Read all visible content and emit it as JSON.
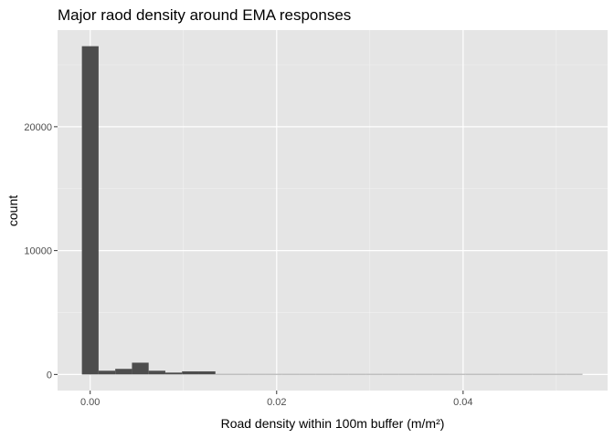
{
  "chart_data": {
    "type": "bar",
    "title": "Major raod density around EMA responses",
    "xlabel": "Road density within 100m buffer (m/m²)",
    "ylabel": "count",
    "xlim": [
      -0.0035,
      0.0555
    ],
    "ylim": [
      -1300,
      27800
    ],
    "x_ticks": [
      0.0,
      0.02,
      0.04
    ],
    "x_tick_labels": [
      "0.00",
      "0.02",
      "0.04"
    ],
    "y_ticks": [
      0,
      10000,
      20000
    ],
    "y_tick_labels": [
      "0",
      "10000",
      "20000"
    ],
    "grid": true,
    "panel_background": "#e5e5e5",
    "bar_color": "#4d4d4d",
    "bin_width": 0.00179,
    "bins_start": [
      -0.00089,
      0.0009,
      0.00269,
      0.00448,
      0.00627,
      0.00806,
      0.00985,
      0.01164,
      0.01343,
      0.01522,
      0.01701,
      0.0188,
      0.02059,
      0.02238,
      0.02417,
      0.02596,
      0.02775,
      0.02954,
      0.03133,
      0.03312,
      0.03491,
      0.0367,
      0.03849,
      0.04028,
      0.04207,
      0.04386,
      0.04565,
      0.04744,
      0.04923,
      0.05102
    ],
    "counts": [
      26500,
      300,
      450,
      950,
      300,
      150,
      250,
      250,
      30,
      25,
      20,
      20,
      15,
      12,
      10,
      8,
      5,
      5,
      4,
      3,
      3,
      2,
      2,
      2,
      1,
      1,
      1,
      1,
      1,
      1
    ]
  }
}
